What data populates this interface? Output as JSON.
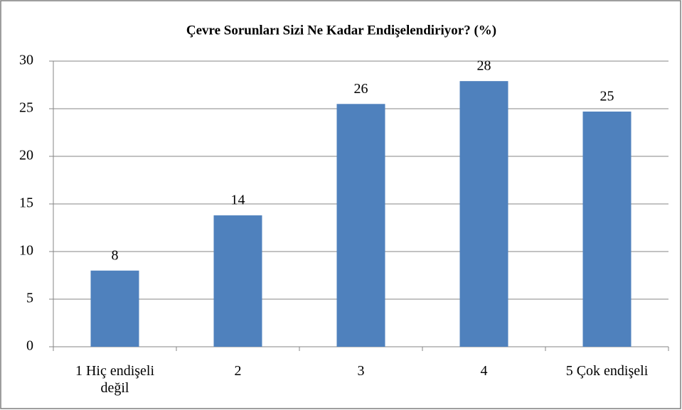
{
  "chart_data": {
    "type": "bar",
    "title": "Çevre Sorunları  Sizi Ne Kadar Endişelendiriyor?  (%)",
    "categories": [
      "1 Hiç endişeli değil",
      "2",
      "3",
      "4",
      "5 Çok endişeli"
    ],
    "values": [
      8,
      13.8,
      25.5,
      27.9,
      24.7
    ],
    "value_labels": [
      "8",
      "14",
      "26",
      "28",
      "25"
    ],
    "color": "#4f81bd",
    "ylim": [
      0,
      30
    ],
    "yticks": [
      0,
      5,
      10,
      15,
      20,
      25,
      30
    ],
    "grid": true
  }
}
